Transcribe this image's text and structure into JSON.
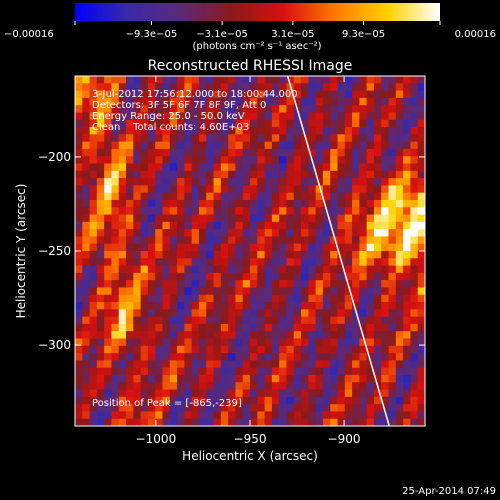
{
  "chart_data": {
    "type": "heatmap",
    "title": "Reconstructed RHESSI Image",
    "xlabel": "Heliocentric X (arcsec)",
    "ylabel": "Heliocentric Y (arcsec)",
    "xlim": [
      -1043,
      -857
    ],
    "ylim": [
      -343,
      -157
    ],
    "x_ticks": [
      {
        "value": -1000,
        "label": "−1000"
      },
      {
        "value": -950,
        "label": "−950"
      },
      {
        "value": -900,
        "label": "−900"
      }
    ],
    "y_ticks": [
      {
        "value": -200,
        "label": "−200"
      },
      {
        "value": -250,
        "label": "−250"
      },
      {
        "value": -300,
        "label": "−300"
      }
    ],
    "colorbar": {
      "min": -0.00016,
      "max": 0.00016,
      "ticks": [
        {
          "value": -0.00016,
          "label": "−0.00016"
        },
        {
          "value": -9.3e-05,
          "label": "−9.3e−05"
        },
        {
          "value": -3.1e-05,
          "label": "−3.1e−05"
        },
        {
          "value": 3.1e-05,
          "label": "3.1e−05"
        },
        {
          "value": 9.3e-05,
          "label": "9.3e−05"
        },
        {
          "value": 0.00016,
          "label": "0.00016"
        }
      ],
      "unit_label": "(photons cm⁻² s⁻¹ asec⁻²)",
      "colors": [
        "#0000ff",
        "#3a2aa8",
        "#5a2a7a",
        "#8a1a1a",
        "#d81010",
        "#ff7a00",
        "#ffd200",
        "#ffffff"
      ]
    },
    "annotations": {
      "time_range": "3-Jul-2012 17:56:12.000 to 18:00:44.000",
      "detectors": "Detectors: 3F 5F 6F 7F 8F 9F, Att 0",
      "energy": "Energy Range: 25.0 - 50.0 keV",
      "clean": "Clean    Total counts: 4.60E+03",
      "peak": "Position of Peak = [-865,-239]"
    },
    "limb_line": {
      "x": [
        -930,
        -876
      ],
      "y": [
        -157,
        -343
      ],
      "color": "#ffffff"
    },
    "peak_position": [
      -865,
      -239
    ],
    "grid": false
  },
  "footer": {
    "date": "25-Apr-2014 07:49"
  }
}
